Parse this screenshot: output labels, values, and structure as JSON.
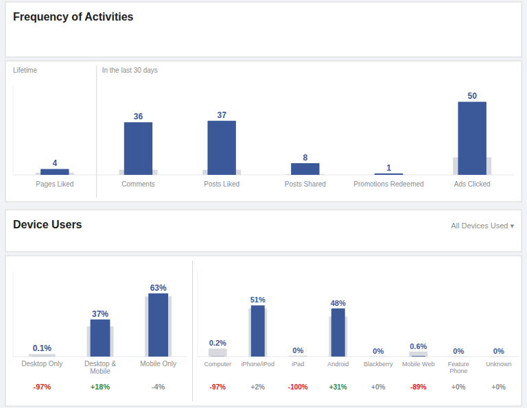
{
  "chart_data": [
    {
      "type": "bar",
      "title": "Frequency of Activities",
      "annotations": [
        "Lifetime",
        "In the last 30 days"
      ],
      "categories": [
        "Pages Liked",
        "Comments",
        "Posts Liked",
        "Posts Shared",
        "Promotions Redeemed",
        "Ads Clicked"
      ],
      "series": [
        {
          "color": "#d8dadf",
          "values": [
            1.5,
            3.5,
            3.5,
            0.5,
            0.2,
            12
          ]
        },
        {
          "color": "#3b5898",
          "values": [
            4,
            36,
            37,
            8,
            1,
            50
          ],
          "data_labels": true
        }
      ],
      "ylim": [
        0,
        61
      ],
      "tick_labels": false
    },
    {
      "type": "bar",
      "title": "Device Users",
      "annotations": [
        "All Devices Used ▾"
      ],
      "categories": [
        "Desktop Only",
        "Desktop &\nMobile",
        "Mobile Only"
      ],
      "series": [
        {
          "color": "#d8dadf",
          "values": [
            2.5,
            30,
            60
          ]
        },
        {
          "color": "#3b5898",
          "values": [
            0.1,
            37,
            63
          ],
          "value_labels": [
            "0.1%",
            "37%",
            "63%"
          ],
          "data_labels": true
        }
      ],
      "changes": [
        "-97%",
        "+18%",
        "-4%"
      ],
      "change_colors": [
        "#e02020",
        "#2d8a4e",
        "#8a8d91"
      ],
      "ylim": [
        0,
        85.4
      ],
      "tick_labels": false
    },
    {
      "type": "bar",
      "categories": [
        "Computer",
        "iPhone/iPod",
        "iPad",
        "Android",
        "Blackberry",
        "Mobile Web",
        "Feature\nPhone",
        "Unknown"
      ],
      "series": [
        {
          "color": "#d8dadf",
          "values": [
            8,
            48,
            1,
            40,
            0.3,
            5,
            0.3,
            0.3
          ]
        },
        {
          "color": "#3b5898",
          "values": [
            0.2,
            51,
            0,
            48,
            0,
            0.6,
            0,
            0
          ],
          "value_labels": [
            "0.2%",
            "51%",
            "0%",
            "48%",
            "0%",
            "0.6%",
            "0%",
            "0%"
          ],
          "data_labels": true
        }
      ],
      "changes": [
        "-97%",
        "+2%",
        "-100%",
        "+31%",
        "+0%",
        "-89%",
        "+0%",
        "+0%"
      ],
      "change_colors": [
        "#e02020",
        "#8a8d91",
        "#e02020",
        "#2d8a4e",
        "#8a8d91",
        "#e02020",
        "#8a8d91",
        "#8a8d91"
      ],
      "ylim": [
        0,
        85.4
      ],
      "tick_labels": false
    }
  ]
}
